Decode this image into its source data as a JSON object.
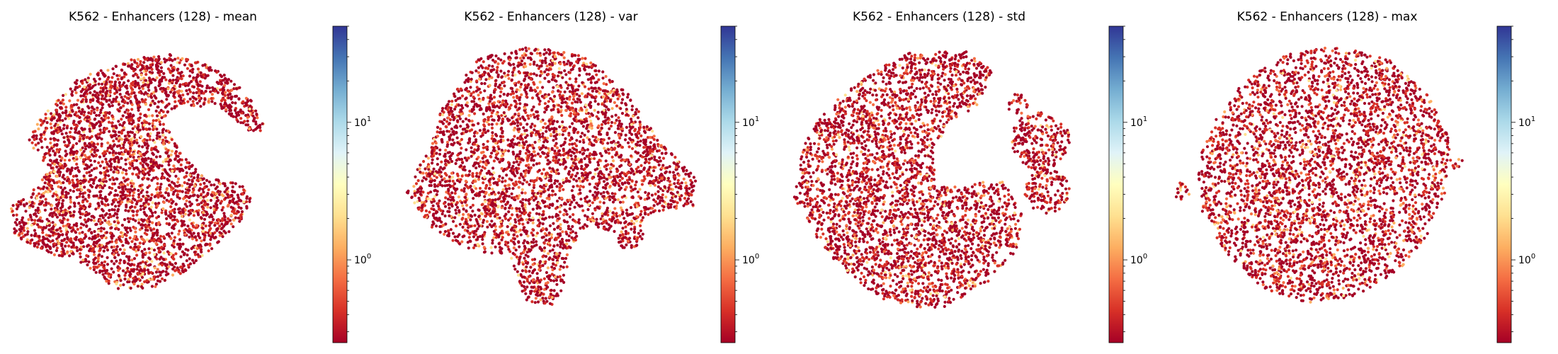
{
  "colormap": {
    "name": "RdYlBu",
    "stops": [
      "#a50026",
      "#d73027",
      "#f46d43",
      "#fdae61",
      "#fee090",
      "#ffffbf",
      "#e0f3f8",
      "#abd9e9",
      "#74add1",
      "#4575b4",
      "#313695"
    ]
  },
  "chart_data": [
    {
      "type": "scatter",
      "title": "K562 - Enhancers (128) - mean",
      "colorbar": {
        "scale": "log",
        "range": [
          0.25,
          50
        ],
        "ticks": [
          {
            "value": 1,
            "label": "10^0"
          },
          {
            "value": 10,
            "label": "10^1"
          }
        ]
      },
      "axes_visible": false,
      "embedding_shape": "mean"
    },
    {
      "type": "scatter",
      "title": "K562 - Enhancers (128) - var",
      "colorbar": {
        "scale": "log",
        "range": [
          0.25,
          50
        ],
        "ticks": [
          {
            "value": 1,
            "label": "10^0"
          },
          {
            "value": 10,
            "label": "10^1"
          }
        ]
      },
      "axes_visible": false,
      "embedding_shape": "var"
    },
    {
      "type": "scatter",
      "title": "K562 - Enhancers (128) - std",
      "colorbar": {
        "scale": "log",
        "range": [
          0.25,
          50
        ],
        "ticks": [
          {
            "value": 1,
            "label": "10^0"
          },
          {
            "value": 10,
            "label": "10^1"
          }
        ]
      },
      "axes_visible": false,
      "embedding_shape": "std"
    },
    {
      "type": "scatter",
      "title": "K562 - Enhancers (128) - max",
      "colorbar": {
        "scale": "log",
        "range": [
          0.25,
          50
        ],
        "ticks": [
          {
            "value": 1,
            "label": "10^0"
          },
          {
            "value": 10,
            "label": "10^1"
          }
        ]
      },
      "axes_visible": false,
      "embedding_shape": "max"
    }
  ]
}
